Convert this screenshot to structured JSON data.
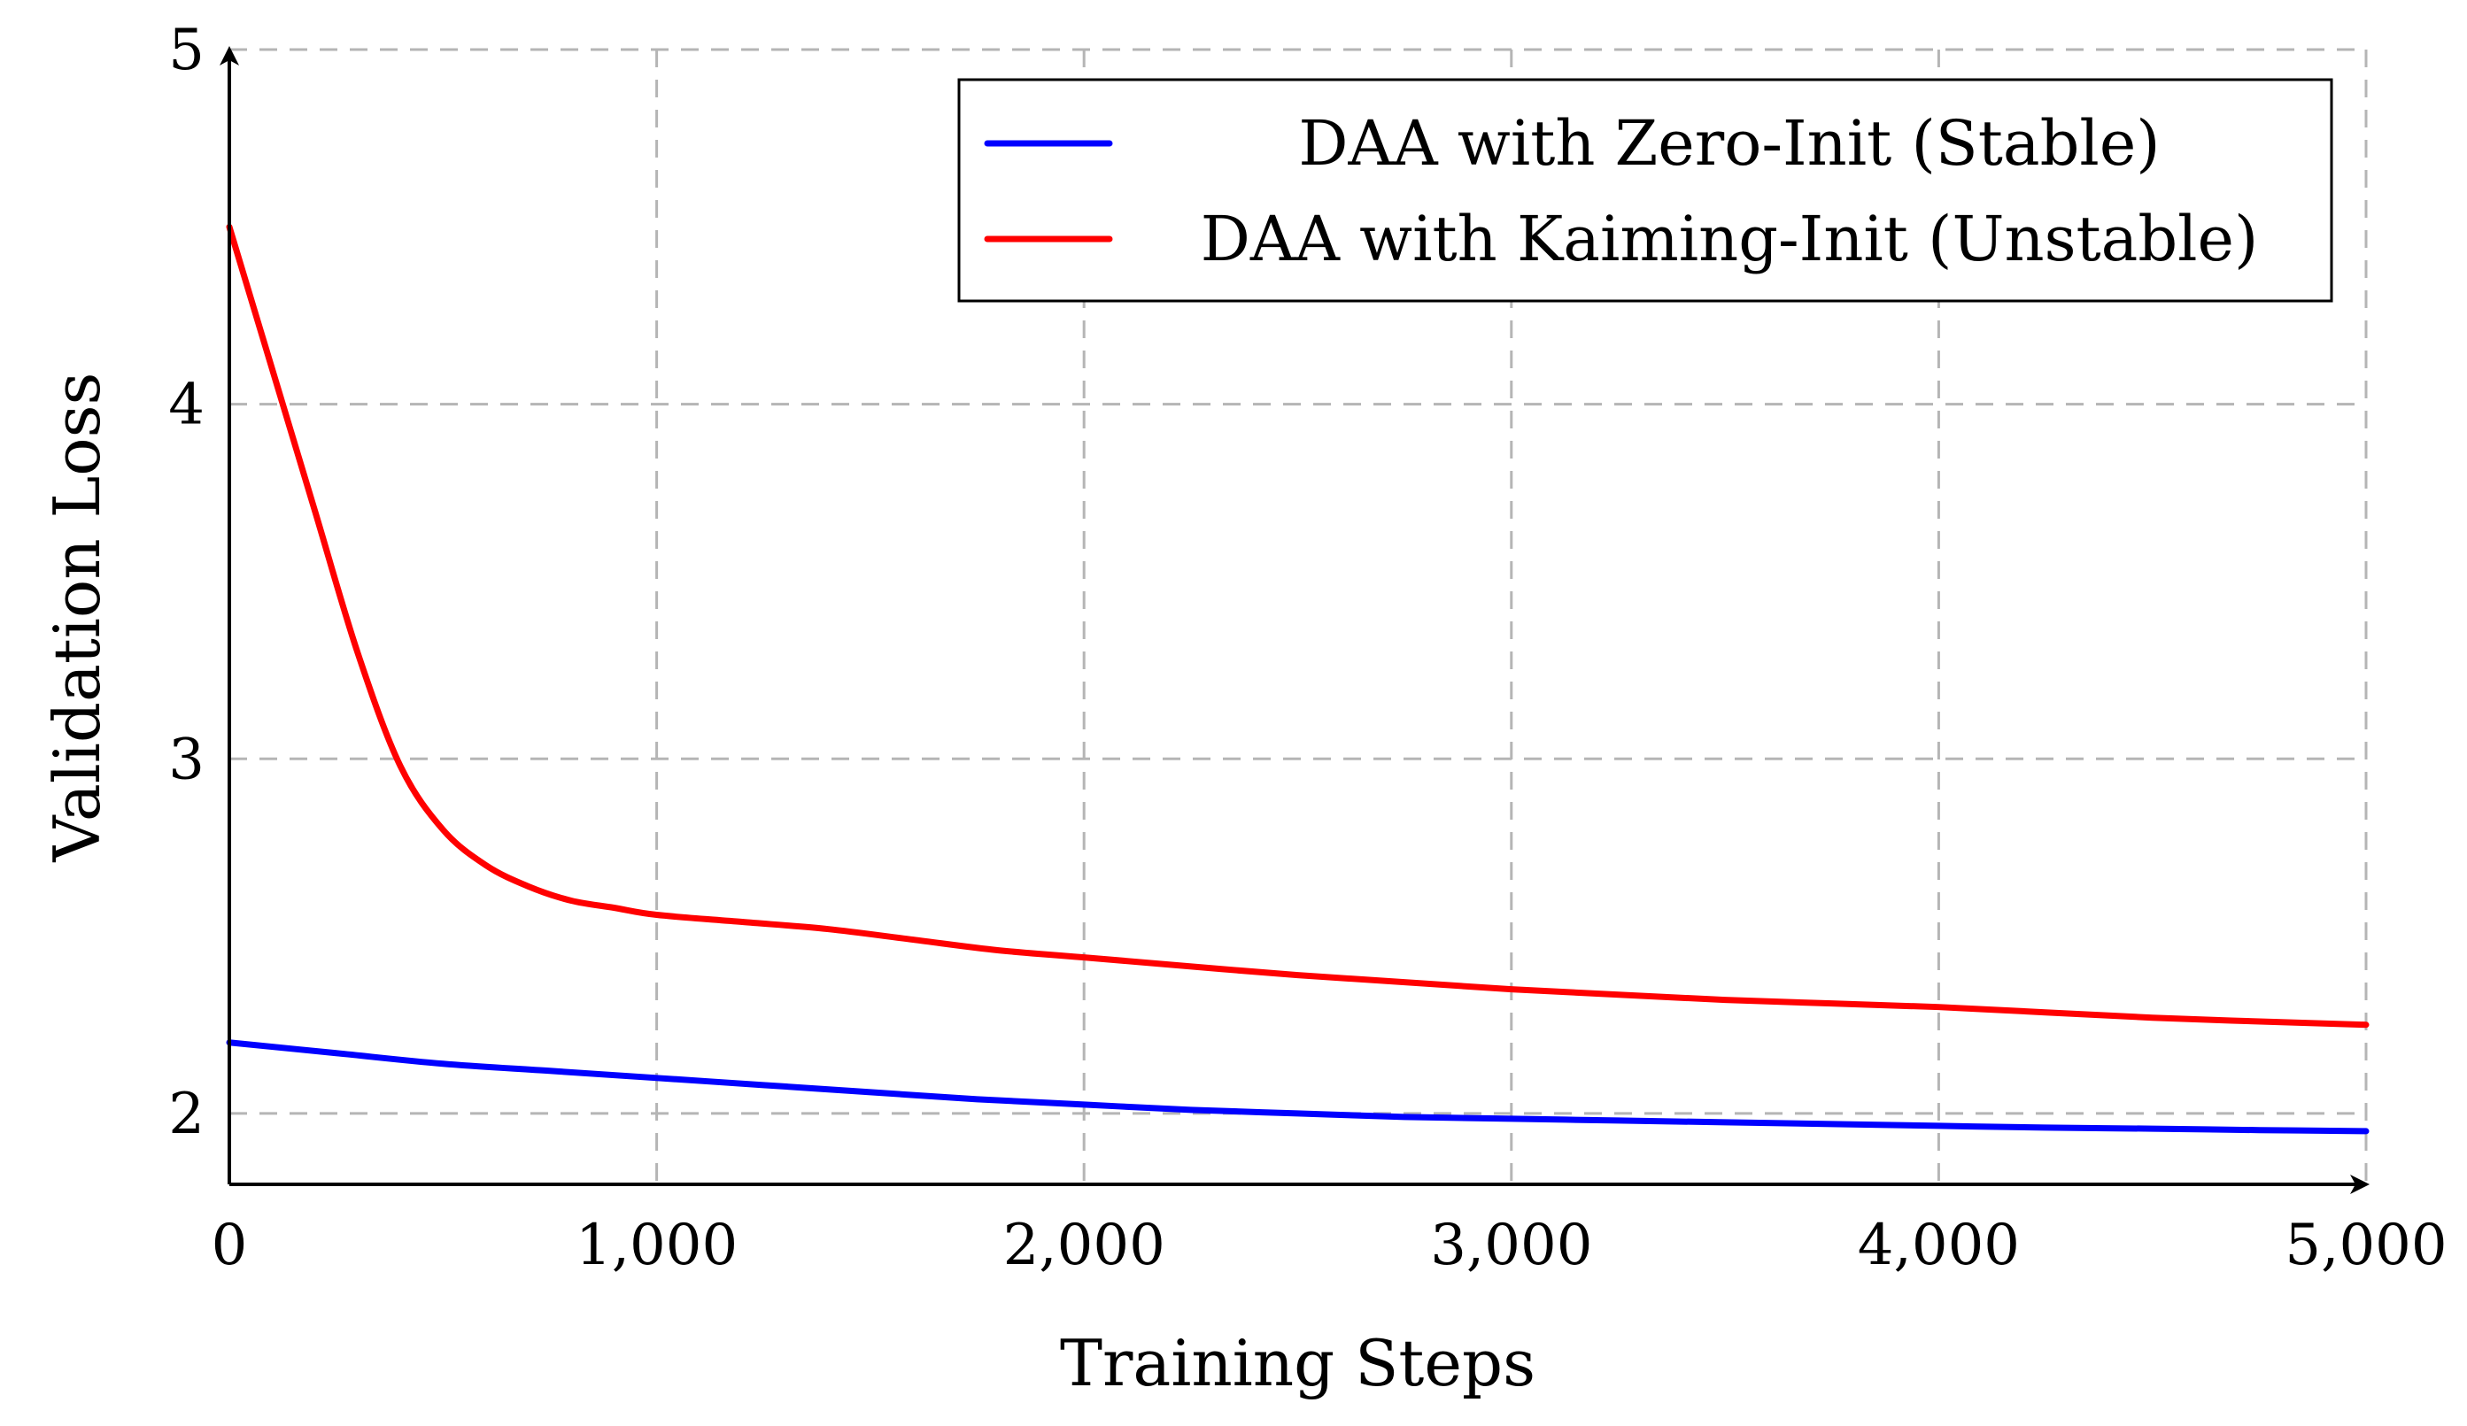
{
  "chart_data": {
    "type": "line",
    "title": "",
    "xlabel": "Training Steps",
    "ylabel": "Validation Loss",
    "xlim": [
      0,
      5000
    ],
    "ylim": [
      1.8,
      5
    ],
    "x_ticks": [
      0,
      1000,
      2000,
      3000,
      4000,
      5000
    ],
    "x_tick_labels": [
      "0",
      "1,000",
      "2,000",
      "3,000",
      "4,000",
      "5,000"
    ],
    "y_ticks": [
      2,
      3,
      4,
      5
    ],
    "y_tick_labels": [
      "2",
      "3",
      "4",
      "5"
    ],
    "grid": true,
    "legend_position": "top-right",
    "series": [
      {
        "name": "DAA with Zero-Init (Stable)",
        "color": "#0000ff",
        "x": [
          0,
          250,
          500,
          750,
          1000,
          1250,
          1500,
          1750,
          2000,
          2250,
          2500,
          2750,
          3000,
          3250,
          3500,
          3750,
          4000,
          4250,
          4500,
          4750,
          5000
        ],
        "y": [
          2.2,
          2.17,
          2.14,
          2.12,
          2.1,
          2.08,
          2.06,
          2.04,
          2.025,
          2.01,
          2.0,
          1.99,
          1.985,
          1.98,
          1.975,
          1.97,
          1.965,
          1.96,
          1.957,
          1.953,
          1.95
        ]
      },
      {
        "name": "DAA with Kaiming-Init (Unstable)",
        "color": "#ff0000",
        "x": [
          0,
          100,
          200,
          300,
          400,
          500,
          600,
          700,
          800,
          900,
          1000,
          1200,
          1400,
          1600,
          1800,
          2000,
          2500,
          3000,
          3500,
          4000,
          4500,
          5000
        ],
        "y": [
          4.5,
          4.1,
          3.7,
          3.3,
          2.98,
          2.8,
          2.7,
          2.64,
          2.6,
          2.58,
          2.56,
          2.54,
          2.52,
          2.49,
          2.46,
          2.44,
          2.39,
          2.35,
          2.32,
          2.3,
          2.27,
          2.25
        ]
      }
    ]
  }
}
